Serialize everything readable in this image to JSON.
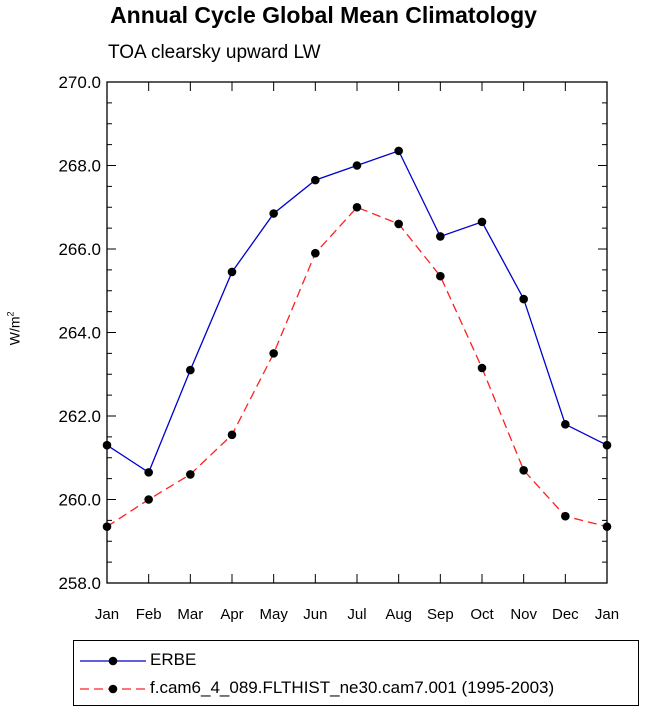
{
  "chart_data": {
    "type": "line",
    "title": "Annual Cycle Global Mean Climatology",
    "subtitle": "TOA clearsky upward LW",
    "ylabel": "W/m",
    "ylabel_sup": "2",
    "ylim": [
      258.0,
      270.0
    ],
    "yticks": [
      "258.0",
      "260.0",
      "262.0",
      "264.0",
      "266.0",
      "268.0",
      "270.0"
    ],
    "ytick_values": [
      258,
      260,
      262,
      264,
      266,
      268,
      270
    ],
    "categories": [
      "Jan",
      "Feb",
      "Mar",
      "Apr",
      "May",
      "Jun",
      "Jul",
      "Aug",
      "Sep",
      "Oct",
      "Nov",
      "Dec",
      "Jan"
    ],
    "series": [
      {
        "name": "ERBE",
        "color": "#0000cc",
        "dash": "solid",
        "values": [
          261.3,
          260.65,
          263.1,
          265.45,
          266.85,
          267.65,
          268.0,
          268.35,
          266.3,
          266.65,
          264.8,
          261.8,
          261.3
        ]
      },
      {
        "name": "f.cam6_4_089.FLTHIST_ne30.cam7.001 (1995-2003)",
        "color": "#ff2020",
        "dash": "dashed",
        "values": [
          259.35,
          260.0,
          260.6,
          261.55,
          263.5,
          265.9,
          267.0,
          266.6,
          265.35,
          263.15,
          260.7,
          259.6,
          259.35
        ]
      }
    ]
  }
}
